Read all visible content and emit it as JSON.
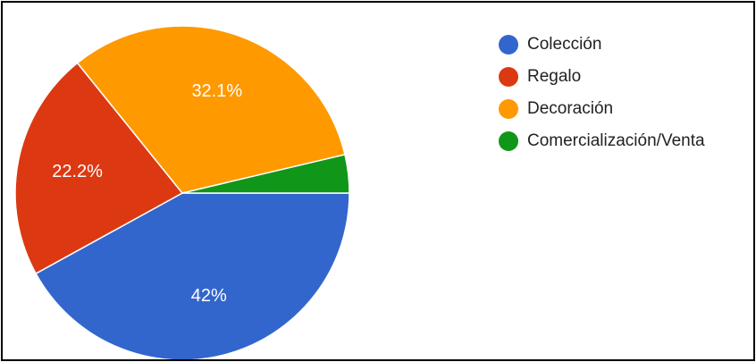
{
  "chart_data": {
    "type": "pie",
    "title": "",
    "slices": [
      {
        "label": "Colección",
        "value": 42,
        "display": "42%",
        "color": "#3366cc"
      },
      {
        "label": "Regalo",
        "value": 22.2,
        "display": "22.2%",
        "color": "#dc3912"
      },
      {
        "label": "Decoración",
        "value": 32.1,
        "display": "32.1%",
        "color": "#ff9900"
      },
      {
        "label": "Comercialización/Venta",
        "value": 3.7,
        "display": "",
        "color": "#109618"
      }
    ],
    "legend": {
      "position": "right",
      "items": [
        "Colección",
        "Regalo",
        "Decoración",
        "Comercialización/Venta"
      ]
    }
  }
}
